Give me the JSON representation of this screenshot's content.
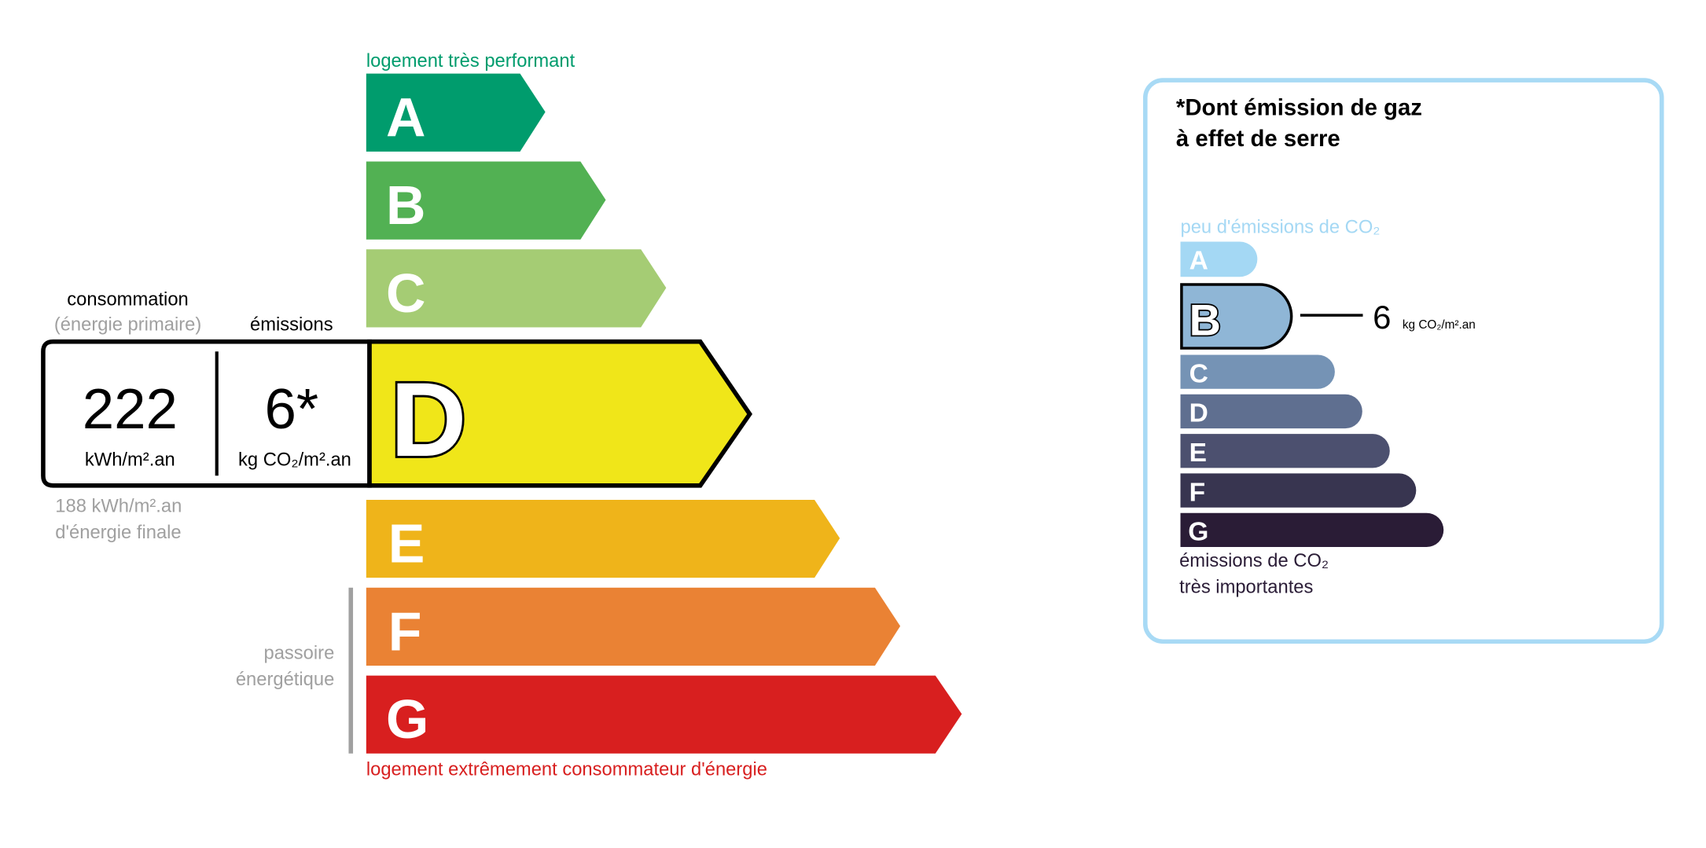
{
  "energy": {
    "top_label": "logement très performant",
    "bottom_label": "logement extrêmement consommateur d'énergie",
    "consumption_label": "consommation",
    "primary_label": "(énergie primaire)",
    "emissions_label": "émissions",
    "consumption_value": "222",
    "consumption_unit": "kWh/m².an",
    "emissions_value": "6*",
    "emissions_unit": "kg CO₂/m².an",
    "final_value": "188 kWh/m².an",
    "final_label": "d'énergie finale",
    "passoire_line1": "passoire",
    "passoire_line2": "énergétique",
    "current_class": "D",
    "classes": [
      {
        "letter": "A",
        "color": "#009c6d"
      },
      {
        "letter": "B",
        "color": "#52b153"
      },
      {
        "letter": "C",
        "color": "#a5cc74"
      },
      {
        "letter": "D",
        "color": "#f0e619"
      },
      {
        "letter": "E",
        "color": "#efb41a"
      },
      {
        "letter": "F",
        "color": "#ea8234"
      },
      {
        "letter": "G",
        "color": "#d81f1f"
      }
    ]
  },
  "ges": {
    "title_line1": "*Dont émission de gaz",
    "title_line2": "à effet de serre",
    "top_label": "peu d'émissions de CO₂",
    "bottom_line1": "émissions de CO₂",
    "bottom_line2": "très importantes",
    "current_class": "B",
    "value": "6",
    "unit": "kg CO₂/m².an",
    "classes": [
      {
        "letter": "A",
        "color": "#a4d8f4"
      },
      {
        "letter": "B",
        "color": "#8fb6d6"
      },
      {
        "letter": "C",
        "color": "#7593b5"
      },
      {
        "letter": "D",
        "color": "#5f6f90"
      },
      {
        "letter": "E",
        "color": "#4c506f"
      },
      {
        "letter": "F",
        "color": "#383550"
      },
      {
        "letter": "G",
        "color": "#2a1c36"
      }
    ]
  }
}
